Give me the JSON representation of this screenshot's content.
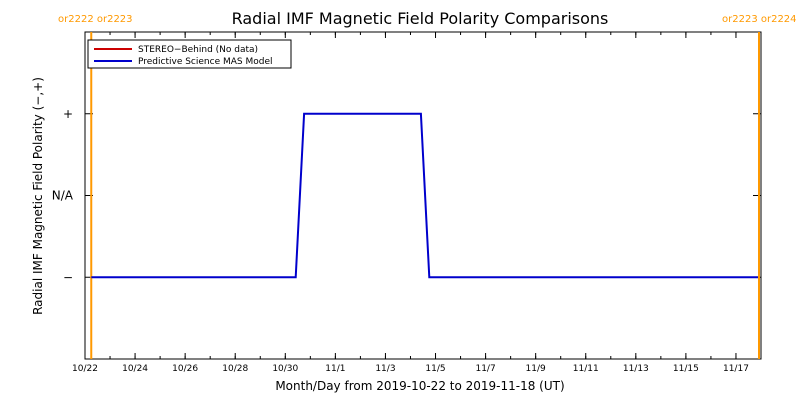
{
  "chart_data": {
    "type": "line",
    "title": "Radial IMF Magnetic Field Polarity Comparisons",
    "xlabel": "Month/Day from 2019-10-22 to 2019-11-18 (UT)",
    "ylabel": "Radial IMF Magnetic Field Polarity (−,+)",
    "x_tick_labels": [
      "10/22",
      "10/24",
      "10/26",
      "10/28",
      "10/30",
      "11/1",
      "11/3",
      "11/5",
      "11/7",
      "11/9",
      "11/11",
      "11/13",
      "11/15",
      "11/17"
    ],
    "x_tick_dates": [
      "2019-10-22",
      "2019-10-24",
      "2019-10-26",
      "2019-10-28",
      "2019-10-30",
      "2019-11-01",
      "2019-11-03",
      "2019-11-05",
      "2019-11-07",
      "2019-11-09",
      "2019-11-11",
      "2019-11-13",
      "2019-11-15",
      "2019-11-17"
    ],
    "xlim": [
      "2019-10-22T00:00",
      "2019-11-18T00:00"
    ],
    "y_categories": [
      "−",
      "N/A",
      "+"
    ],
    "ylim": [
      -2,
      2
    ],
    "grid": false,
    "legend_position": "top-left",
    "series": [
      {
        "name": "STEREO−Behind (No data)",
        "color": "#cc0000",
        "x": [],
        "y": []
      },
      {
        "name": "Predictive Science MAS Model",
        "color": "#0000cc",
        "x": [
          "2019-10-22T06:00",
          "2019-10-30T10:00",
          "2019-10-30T18:00",
          "2019-11-04T10:00",
          "2019-11-04T18:00",
          "2019-11-18T00:00"
        ],
        "y": [
          -1,
          -1,
          1,
          1,
          -1,
          -1
        ]
      }
    ],
    "carrington_rotations": [
      {
        "date": "2019-10-22T06:00",
        "left_label": "or2222",
        "right_label": "or2223",
        "label_position": "left"
      },
      {
        "date": "2019-11-18T00:00",
        "left_label": "or2223",
        "right_label": "or2224",
        "label_position": "right"
      }
    ],
    "carrington_color": "#ff9900"
  }
}
